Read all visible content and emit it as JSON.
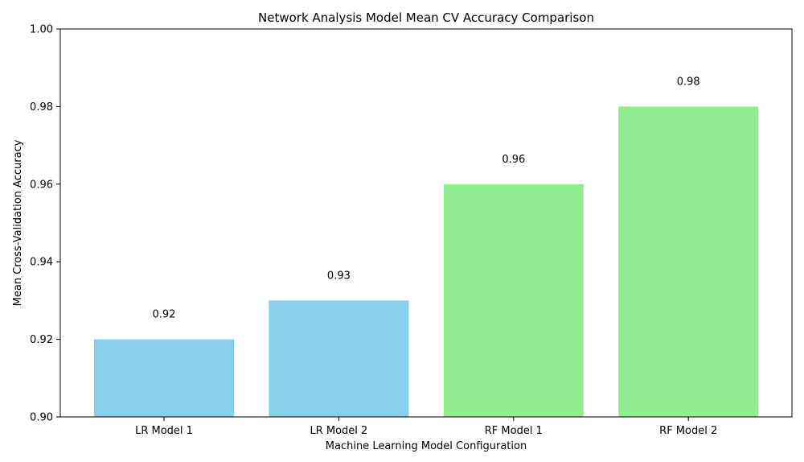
{
  "chart_data": {
    "type": "bar",
    "title": "Network Analysis Model Mean CV Accuracy Comparison",
    "xlabel": "Machine Learning Model Configuration",
    "ylabel": "Mean Cross-Validation Accuracy",
    "categories": [
      "LR Model 1",
      "LR Model 2",
      "RF Model 1",
      "RF Model 2"
    ],
    "values": [
      0.92,
      0.93,
      0.96,
      0.98
    ],
    "data_labels": [
      "0.92",
      "0.93",
      "0.96",
      "0.98"
    ],
    "bar_colors": [
      "#87CEEB",
      "#87CEEB",
      "#90EE90",
      "#90EE90"
    ],
    "ylim": [
      0.9,
      1.0
    ],
    "yticks": [
      0.9,
      0.92,
      0.94,
      0.96,
      0.98,
      1.0
    ],
    "ytick_labels": [
      "0.90",
      "0.92",
      "0.94",
      "0.96",
      "0.98",
      "1.00"
    ],
    "grid": false,
    "legend": "none"
  }
}
